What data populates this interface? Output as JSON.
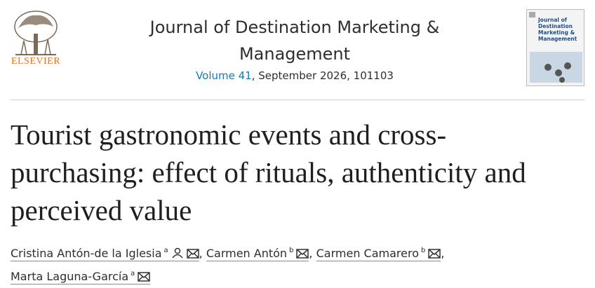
{
  "header": {
    "publisher": "ELSEVIER",
    "journal": "Journal of Destination Marketing & Management",
    "volume": "Volume 41",
    "details": ", September 2026, 101103",
    "cover_title": "Journal of Destination Marketing & Management"
  },
  "article": {
    "title": "Tourist gastronomic events and cross-purchasing: effect of rituals, authenticity and perceived value",
    "separator": ",",
    "authors": [
      {
        "name": "Cristina Antón-de la Iglesia",
        "affiliation": "a"
      },
      {
        "name": "Carmen Antón",
        "affiliation": "b"
      },
      {
        "name": "Carmen Camarero",
        "affiliation": "b"
      },
      {
        "name": "Marta Laguna-García",
        "affiliation": "a"
      }
    ]
  }
}
